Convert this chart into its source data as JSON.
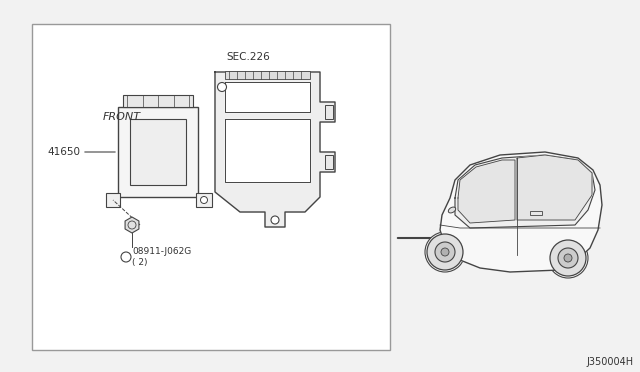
{
  "bg_color": "#f2f2f2",
  "diagram_bg": "#ffffff",
  "diagram_border_color": "#999999",
  "title_bottom_right": "J350004H",
  "sec_label": "SEC.226",
  "part_label_41650": "41650",
  "part_label_bolt": "08911-J062G\n( 2)",
  "front_label": "FRONT",
  "text_color": "#333333",
  "line_color": "#444444",
  "arrow_color": "#444444"
}
